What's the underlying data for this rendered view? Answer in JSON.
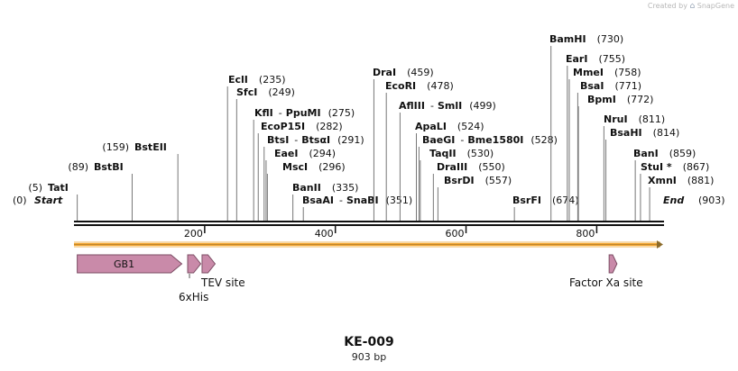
{
  "watermark": {
    "created_by": "Created by",
    "brand": "SnapGene"
  },
  "map": {
    "name": "KE-009",
    "length": 903,
    "length_label": "903 bp",
    "start_label": "Start",
    "end_label": "End",
    "start_pos": "(0)",
    "end_pos": "(903)",
    "ticks": [
      200,
      400,
      600,
      800
    ],
    "colors": {
      "feature_fill": "#c98aa9",
      "feature_stroke": "#7c4d64",
      "orf_fill": "#f3a530",
      "orf_edge": "#8a6a2a"
    }
  },
  "sites": [
    {
      "name": "TatI",
      "pos": "(5)",
      "bp": 5
    },
    {
      "name": "BstBI",
      "pos": "(89)",
      "bp": 89
    },
    {
      "name": "BstEII",
      "pos": "(159)",
      "bp": 159
    },
    {
      "name": "EclI",
      "pos": "(235)",
      "bp": 235
    },
    {
      "name": "SfcI",
      "pos": "(249)",
      "bp": 249
    },
    {
      "name": "KflI",
      "alt": "PpuMI",
      "pos": "(275)",
      "bp": 275
    },
    {
      "name": "EcoP15I",
      "pos": "(282)",
      "bp": 282
    },
    {
      "name": "BtsI",
      "alt": "BtsαI",
      "pos": "(291)",
      "bp": 291
    },
    {
      "name": "EaeI",
      "pos": "(294)",
      "bp": 294
    },
    {
      "name": "MscI",
      "pos": "(296)",
      "bp": 296
    },
    {
      "name": "BanII",
      "pos": "(335)",
      "bp": 335
    },
    {
      "name": "BsaAI",
      "alt": "SnaBI",
      "pos": "(351)",
      "bp": 351
    },
    {
      "name": "DraI",
      "pos": "(459)",
      "bp": 459
    },
    {
      "name": "EcoRI",
      "pos": "(478)",
      "bp": 478
    },
    {
      "name": "AflIII",
      "alt": "SmlI",
      "pos": "(499)",
      "bp": 499
    },
    {
      "name": "ApaLI",
      "pos": "(524)",
      "bp": 524
    },
    {
      "name": "BaeGI",
      "alt": "Bme1580I",
      "pos": "(528)",
      "bp": 528
    },
    {
      "name": "TaqII",
      "pos": "(530)",
      "bp": 530
    },
    {
      "name": "DraIII",
      "pos": "(550)",
      "bp": 550
    },
    {
      "name": "BsrDI",
      "pos": "(557)",
      "bp": 557
    },
    {
      "name": "BsrFI",
      "pos": "(674)",
      "bp": 674
    },
    {
      "name": "BamHI",
      "pos": "(730)",
      "bp": 730
    },
    {
      "name": "EarI",
      "pos": "(755)",
      "bp": 755
    },
    {
      "name": "MmeI",
      "pos": "(758)",
      "bp": 758
    },
    {
      "name": "BsaI",
      "pos": "(771)",
      "bp": 771
    },
    {
      "name": "BpmI",
      "pos": "(772)",
      "bp": 772
    },
    {
      "name": "NruI",
      "pos": "(811)",
      "bp": 811
    },
    {
      "name": "BsaHI",
      "pos": "(814)",
      "bp": 814
    },
    {
      "name": "BanI",
      "pos": "(859)",
      "bp": 859
    },
    {
      "name": "StuI *",
      "pos": "(867)",
      "bp": 867
    },
    {
      "name": "XmnI",
      "pos": "(881)",
      "bp": 881
    }
  ],
  "features": [
    {
      "name": "GB1",
      "start": 5,
      "end": 165,
      "label_inside": true
    },
    {
      "name": "6xHis",
      "start": 174,
      "end": 194,
      "label_inside": false
    },
    {
      "name": "TEV site",
      "start": 196,
      "end": 216,
      "label_inside": false
    },
    {
      "name": "Factor Xa site",
      "start": 819,
      "end": 831,
      "label_inside": false
    }
  ]
}
